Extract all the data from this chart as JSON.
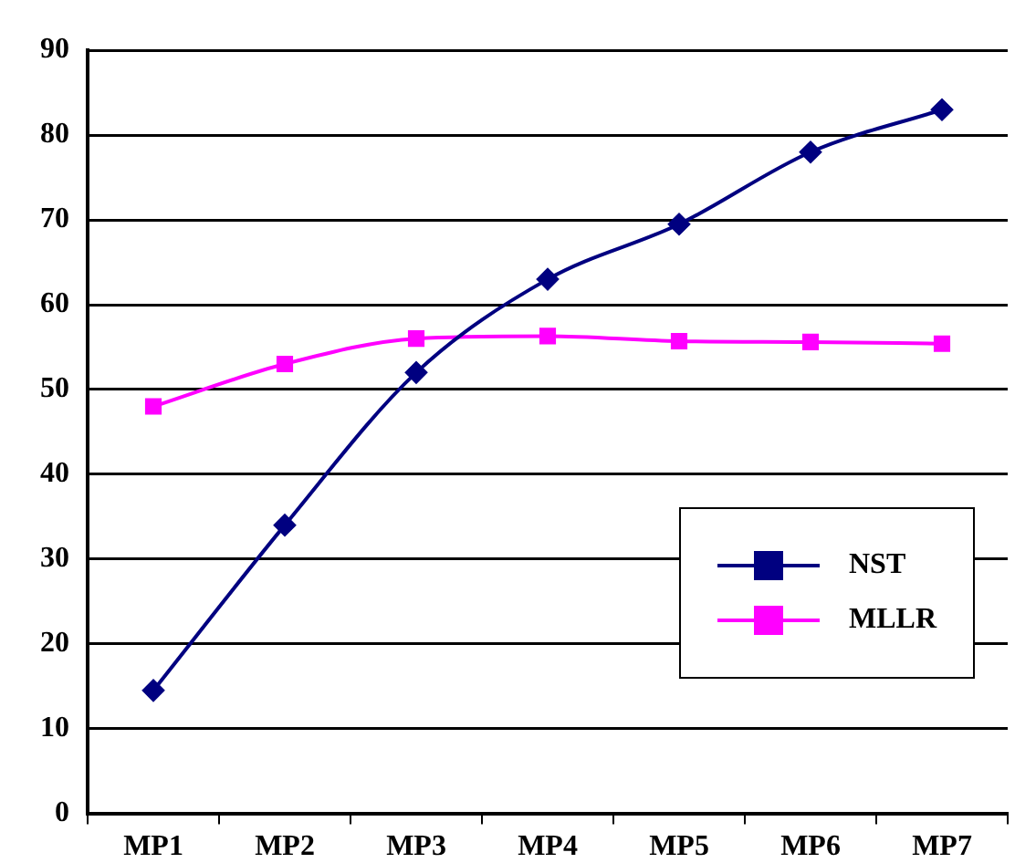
{
  "chart_data": {
    "type": "line",
    "categories": [
      "MP1",
      "MP2",
      "MP3",
      "MP4",
      "MP5",
      "MP6",
      "MP7"
    ],
    "series": [
      {
        "name": "NST",
        "color": "#000080",
        "marker": "diamond",
        "values": [
          14.5,
          34,
          52,
          63,
          69.5,
          78,
          83
        ]
      },
      {
        "name": "MLLR",
        "color": "#ff00ff",
        "marker": "square",
        "values": [
          48,
          53,
          56,
          56.3,
          55.7,
          55.6,
          55.4
        ]
      }
    ],
    "ylim": [
      0,
      90
    ],
    "yticks": [
      0,
      10,
      20,
      30,
      40,
      50,
      60,
      70,
      80,
      90
    ],
    "grid": "y",
    "legend": "bottom right",
    "line_style": "solid"
  }
}
